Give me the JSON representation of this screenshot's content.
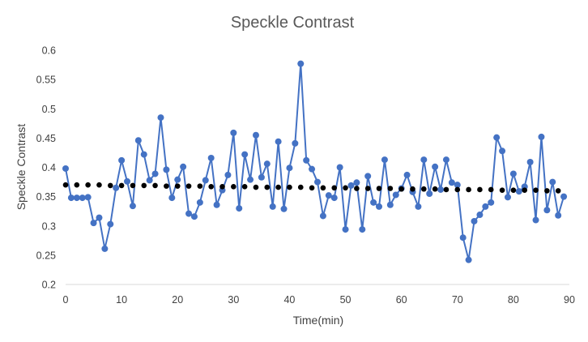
{
  "chart_data": {
    "type": "scatter",
    "title": "Speckle Contrast",
    "xlabel": "Time(min)",
    "ylabel": "Speckle Contrast",
    "xlim": [
      0,
      90
    ],
    "ylim": [
      0.2,
      0.6
    ],
    "x_ticks": [
      0,
      10,
      20,
      30,
      40,
      50,
      60,
      70,
      80,
      90
    ],
    "y_ticks": [
      0.2,
      0.25,
      0.3,
      0.35,
      0.4,
      0.45,
      0.5,
      0.55,
      0.6
    ],
    "x_tick_labels": [
      "0",
      "10",
      "20",
      "30",
      "40",
      "50",
      "60",
      "70",
      "80",
      "90"
    ],
    "y_tick_labels": [
      "0.2",
      "0.25",
      "0.3",
      "0.35",
      "0.4",
      "0.45",
      "0.5",
      "0.55",
      "0.6"
    ],
    "grid": false,
    "legend": "none",
    "series": [
      {
        "style": "line-with-markers",
        "color": "#4472C4",
        "x": [
          0,
          1,
          2,
          3,
          4,
          5,
          6,
          7,
          8,
          9,
          10,
          11,
          12,
          13,
          14,
          15,
          16,
          17,
          18,
          19,
          20,
          21,
          22,
          23,
          24,
          25,
          26,
          27,
          28,
          29,
          30,
          31,
          32,
          33,
          34,
          35,
          36,
          37,
          38,
          39,
          40,
          41,
          42,
          43,
          44,
          45,
          46,
          47,
          48,
          49,
          50,
          51,
          52,
          53,
          54,
          55,
          56,
          57,
          58,
          59,
          60,
          61,
          62,
          63,
          64,
          65,
          66,
          67,
          68,
          69,
          70,
          71,
          72,
          73,
          74,
          75,
          76,
          77,
          78,
          79,
          80,
          81,
          82,
          83,
          84,
          85,
          86,
          87,
          88,
          89
        ],
        "y": [
          0.398,
          0.348,
          0.348,
          0.348,
          0.349,
          0.305,
          0.314,
          0.261,
          0.303,
          0.365,
          0.412,
          0.376,
          0.334,
          0.446,
          0.422,
          0.378,
          0.389,
          0.485,
          0.396,
          0.348,
          0.379,
          0.401,
          0.321,
          0.316,
          0.34,
          0.378,
          0.416,
          0.336,
          0.361,
          0.387,
          0.459,
          0.33,
          0.422,
          0.379,
          0.455,
          0.383,
          0.406,
          0.333,
          0.444,
          0.329,
          0.399,
          0.441,
          0.577,
          0.412,
          0.397,
          0.375,
          0.317,
          0.352,
          0.348,
          0.4,
          0.294,
          0.369,
          0.374,
          0.294,
          0.385,
          0.34,
          0.333,
          0.413,
          0.336,
          0.353,
          0.364,
          0.387,
          0.358,
          0.333,
          0.413,
          0.355,
          0.401,
          0.362,
          0.413,
          0.374,
          0.37,
          0.28,
          0.242,
          0.308,
          0.319,
          0.333,
          0.34,
          0.451,
          0.428,
          0.349,
          0.389,
          0.359,
          0.367,
          0.409,
          0.31,
          0.452,
          0.327,
          0.375,
          0.318,
          0.35
        ]
      },
      {
        "style": "markers",
        "color": "#000000",
        "x": [
          0,
          2,
          4,
          6,
          8,
          10,
          12,
          14,
          16,
          18,
          20,
          22,
          24,
          26,
          28,
          30,
          32,
          34,
          36,
          38,
          40,
          42,
          44,
          46,
          48,
          50,
          52,
          54,
          56,
          58,
          60,
          62,
          64,
          66,
          68,
          70,
          72,
          74,
          76,
          78,
          80,
          82,
          84,
          86,
          88
        ],
        "y": [
          0.37,
          0.37,
          0.37,
          0.37,
          0.369,
          0.369,
          0.369,
          0.369,
          0.369,
          0.368,
          0.368,
          0.368,
          0.368,
          0.367,
          0.367,
          0.367,
          0.367,
          0.366,
          0.366,
          0.366,
          0.366,
          0.366,
          0.365,
          0.365,
          0.365,
          0.365,
          0.364,
          0.364,
          0.364,
          0.364,
          0.363,
          0.363,
          0.363,
          0.363,
          0.362,
          0.362,
          0.362,
          0.362,
          0.362,
          0.361,
          0.361,
          0.361,
          0.361,
          0.36,
          0.36
        ]
      }
    ]
  }
}
